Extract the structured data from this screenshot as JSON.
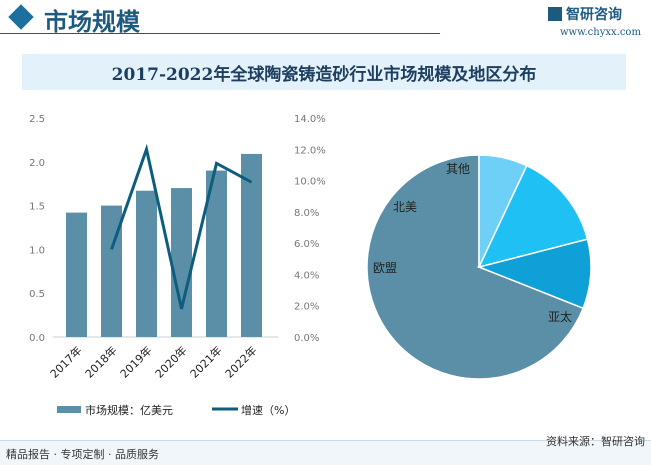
{
  "header": {
    "title": "市场规模",
    "logo_text": "智研咨询",
    "site": "www.chyxx.com"
  },
  "footer": {
    "left": "精品报告 · 专项定制 · 品质服务",
    "right": "资料来源：智研咨询"
  },
  "chart_data": [
    {
      "type": "bar+line",
      "title": "2017-2022年全球陶瓷铸造砂行业市场规模及地区分布",
      "categories": [
        "2017年",
        "2018年",
        "2019年",
        "2020年",
        "2021年",
        "2022年"
      ],
      "series": [
        {
          "name": "市场规模：亿美元",
          "type": "bar",
          "axis": "left",
          "values": [
            1.42,
            1.5,
            1.67,
            1.7,
            1.9,
            2.09
          ],
          "color": "#5b8fa8"
        },
        {
          "name": "增速（%）",
          "type": "line",
          "axis": "right",
          "values": [
            null,
            5.6,
            12.0,
            1.8,
            11.1,
            9.9
          ],
          "color": "#0f5d7e"
        }
      ],
      "y_left": {
        "ylim": [
          0,
          2.5
        ],
        "ticks": [
          "0.0",
          "0.5",
          "1.0",
          "1.5",
          "2.0",
          "2.5"
        ]
      },
      "y_right": {
        "ylim": [
          0,
          14
        ],
        "ticks": [
          "0.0%",
          "2.0%",
          "4.0%",
          "6.0%",
          "8.0%",
          "10.0%",
          "12.0%",
          "14.0%"
        ]
      },
      "legend": "bottom"
    },
    {
      "type": "pie",
      "labels": [
        "亚太",
        "欧盟",
        "北美",
        "其他"
      ],
      "values": [
        69,
        10,
        14,
        7
      ],
      "colors": [
        "#5b8fa8",
        "#0ea0d6",
        "#1fc1f5",
        "#6fd0f7"
      ]
    }
  ]
}
